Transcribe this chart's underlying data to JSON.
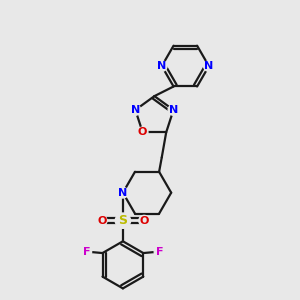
{
  "bg_color": "#e8e8e8",
  "bond_color": "#1a1a1a",
  "N_color": "#0000ff",
  "O_color": "#dd0000",
  "S_color": "#bbbb00",
  "F_color": "#cc00cc",
  "line_width": 1.6,
  "figsize": [
    3.0,
    3.0
  ],
  "dpi": 100,
  "xlim": [
    0,
    10
  ],
  "ylim": [
    0,
    10
  ]
}
